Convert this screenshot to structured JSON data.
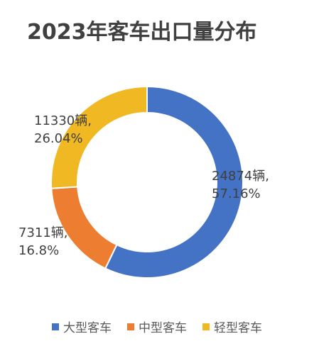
{
  "chart_data": {
    "type": "pie",
    "title": "2023年客车出口量分布",
    "categories": [
      "大型客车",
      "中型客车",
      "轻型客车"
    ],
    "values": [
      24874,
      7311,
      11330
    ],
    "percent_labels": [
      "57.16%",
      "16.8%",
      "26.04%"
    ],
    "value_labels": [
      "24874辆,",
      "7311辆,",
      "11330辆,"
    ],
    "colors": [
      "#4472C4",
      "#ED7D31",
      "#F0B823"
    ],
    "legend_position": "bottom",
    "donut": true
  }
}
